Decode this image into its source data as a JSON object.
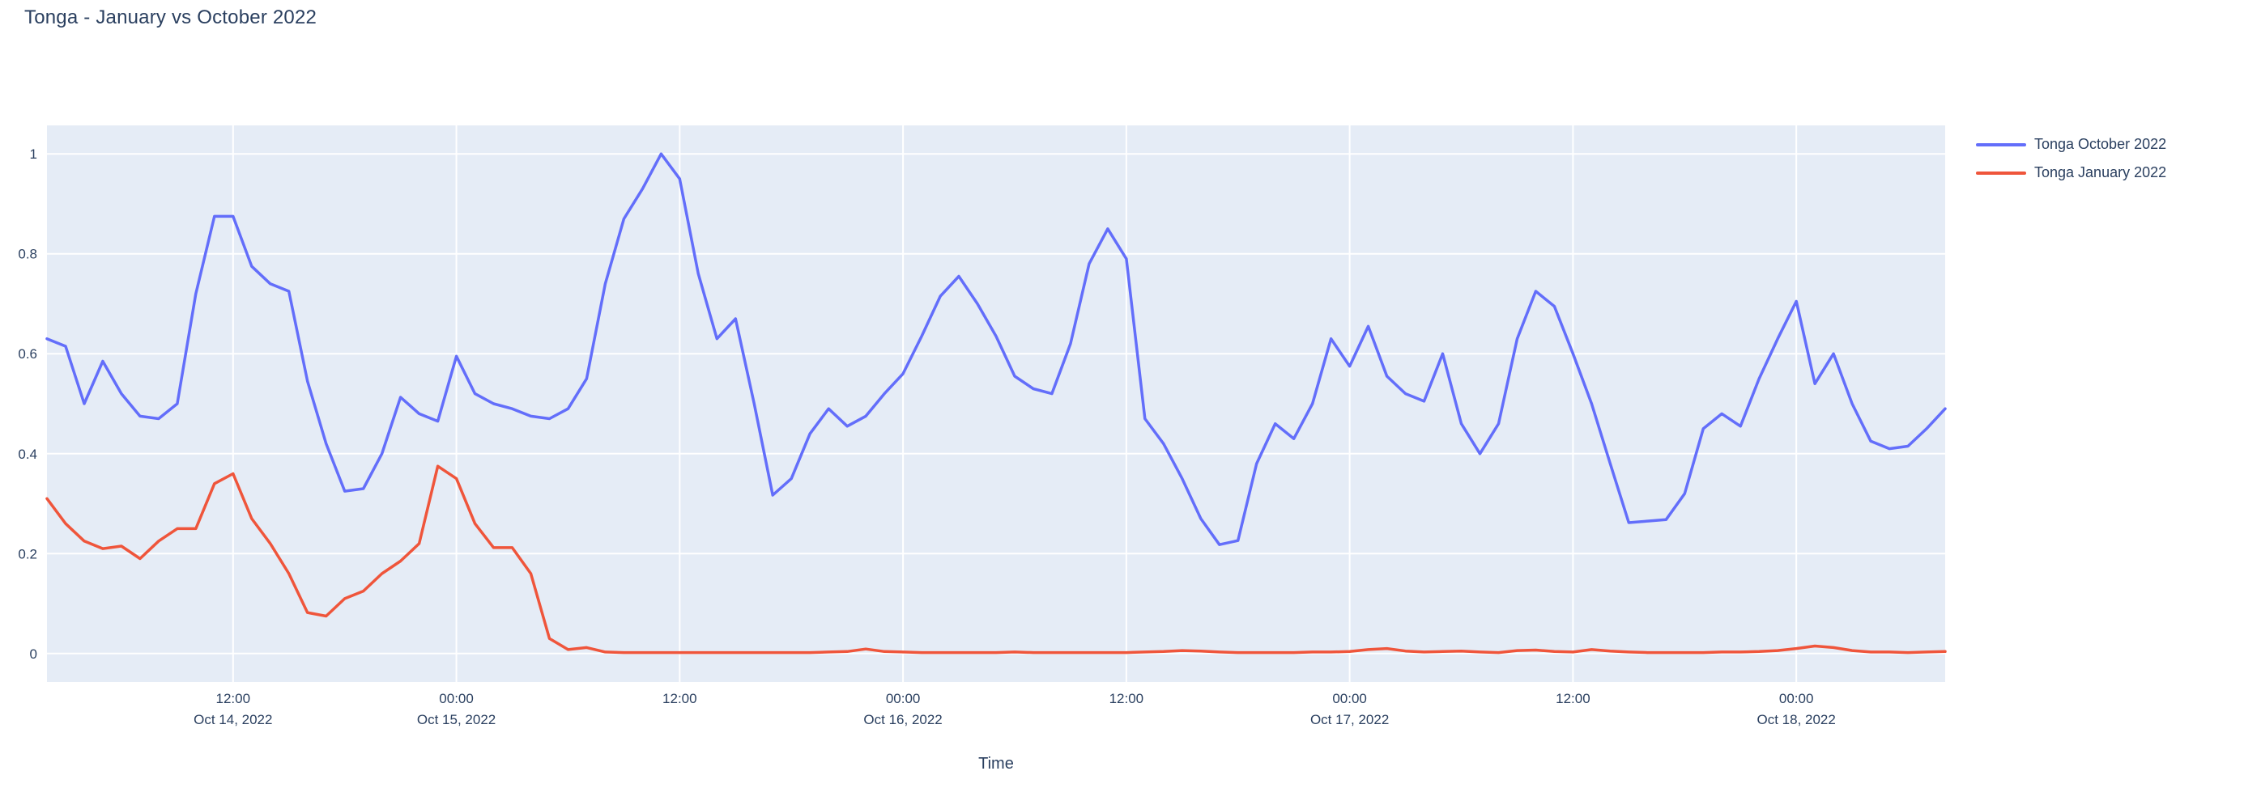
{
  "title": "Tonga - January vs October 2022",
  "axes": {
    "x_title": "Time",
    "y_tick_labels": [
      "0",
      "0.2",
      "0.4",
      "0.6",
      "0.8",
      "1"
    ],
    "y_tick_values": [
      0,
      0.2,
      0.4,
      0.6,
      0.8,
      1
    ],
    "x_ticks": [
      {
        "h": 10,
        "time": "12:00",
        "date": "Oct 14, 2022"
      },
      {
        "h": 22,
        "time": "00:00",
        "date": "Oct 15, 2022"
      },
      {
        "h": 34,
        "time": "12:00",
        "date": ""
      },
      {
        "h": 46,
        "time": "00:00",
        "date": "Oct 16, 2022"
      },
      {
        "h": 58,
        "time": "12:00",
        "date": ""
      },
      {
        "h": 70,
        "time": "00:00",
        "date": "Oct 17, 2022"
      },
      {
        "h": 82,
        "time": "12:00",
        "date": ""
      },
      {
        "h": 94,
        "time": "00:00",
        "date": "Oct 18, 2022"
      }
    ]
  },
  "legend": {
    "items": [
      {
        "label": "Tonga October 2022",
        "color": "#636EFA"
      },
      {
        "label": "Tonga January 2022",
        "color": "#EF553B"
      }
    ]
  },
  "colors": {
    "plot_background": "#E5ECF6",
    "gridline": "#FFFFFF",
    "text": "#2a3f5f",
    "series_october": "#636EFA",
    "series_january": "#EF553B"
  },
  "chart_data": {
    "type": "line",
    "title": "Tonga - January vs October 2022",
    "xlabel": "Time",
    "ylabel": "",
    "x_start": "2022-10-14 02:00",
    "x_step_hours": 1,
    "x_hours_range": [
      0,
      102
    ],
    "ylim": [
      -0.057,
      1.057
    ],
    "grid": true,
    "legend_position": "top-right-outside",
    "series": [
      {
        "name": "Tonga October 2022",
        "color": "#636EFA",
        "values": [
          0.63,
          0.615,
          0.5,
          0.585,
          0.52,
          0.475,
          0.47,
          0.5,
          0.72,
          0.875,
          0.875,
          0.775,
          0.74,
          0.725,
          0.545,
          0.42,
          0.325,
          0.33,
          0.4,
          0.513,
          0.48,
          0.465,
          0.595,
          0.52,
          0.5,
          0.49,
          0.475,
          0.47,
          0.49,
          0.55,
          0.74,
          0.87,
          0.93,
          1.0,
          0.95,
          0.76,
          0.63,
          0.67,
          0.5,
          0.317,
          0.35,
          0.44,
          0.49,
          0.455,
          0.475,
          0.52,
          0.56,
          0.635,
          0.715,
          0.755,
          0.7,
          0.635,
          0.555,
          0.53,
          0.52,
          0.62,
          0.78,
          0.85,
          0.79,
          0.47,
          0.42,
          0.35,
          0.27,
          0.218,
          0.226,
          0.38,
          0.46,
          0.43,
          0.5,
          0.63,
          0.575,
          0.655,
          0.555,
          0.52,
          0.505,
          0.6,
          0.46,
          0.4,
          0.46,
          0.63,
          0.725,
          0.695,
          0.6,
          0.5,
          0.38,
          0.262,
          0.265,
          0.268,
          0.32,
          0.45,
          0.48,
          0.455,
          0.55,
          0.63,
          0.705,
          0.54,
          0.6,
          0.5,
          0.425,
          0.41,
          0.415,
          0.45,
          0.49
        ]
      },
      {
        "name": "Tonga January 2022",
        "color": "#EF553B",
        "values": [
          0.31,
          0.26,
          0.225,
          0.21,
          0.215,
          0.19,
          0.225,
          0.25,
          0.25,
          0.34,
          0.36,
          0.27,
          0.22,
          0.16,
          0.082,
          0.075,
          0.11,
          0.125,
          0.16,
          0.185,
          0.22,
          0.375,
          0.35,
          0.26,
          0.212,
          0.212,
          0.16,
          0.03,
          0.008,
          0.012,
          0.003,
          0.002,
          0.002,
          0.002,
          0.002,
          0.002,
          0.002,
          0.002,
          0.002,
          0.002,
          0.002,
          0.002,
          0.003,
          0.004,
          0.009,
          0.004,
          0.003,
          0.002,
          0.002,
          0.002,
          0.002,
          0.002,
          0.003,
          0.002,
          0.002,
          0.002,
          0.002,
          0.002,
          0.002,
          0.003,
          0.004,
          0.006,
          0.005,
          0.003,
          0.002,
          0.002,
          0.002,
          0.002,
          0.003,
          0.003,
          0.004,
          0.008,
          0.01,
          0.005,
          0.003,
          0.004,
          0.005,
          0.003,
          0.002,
          0.006,
          0.007,
          0.004,
          0.003,
          0.008,
          0.005,
          0.003,
          0.002,
          0.002,
          0.002,
          0.002,
          0.003,
          0.003,
          0.004,
          0.006,
          0.01,
          0.015,
          0.012,
          0.006,
          0.003,
          0.003,
          0.002,
          0.003,
          0.004
        ]
      }
    ]
  }
}
